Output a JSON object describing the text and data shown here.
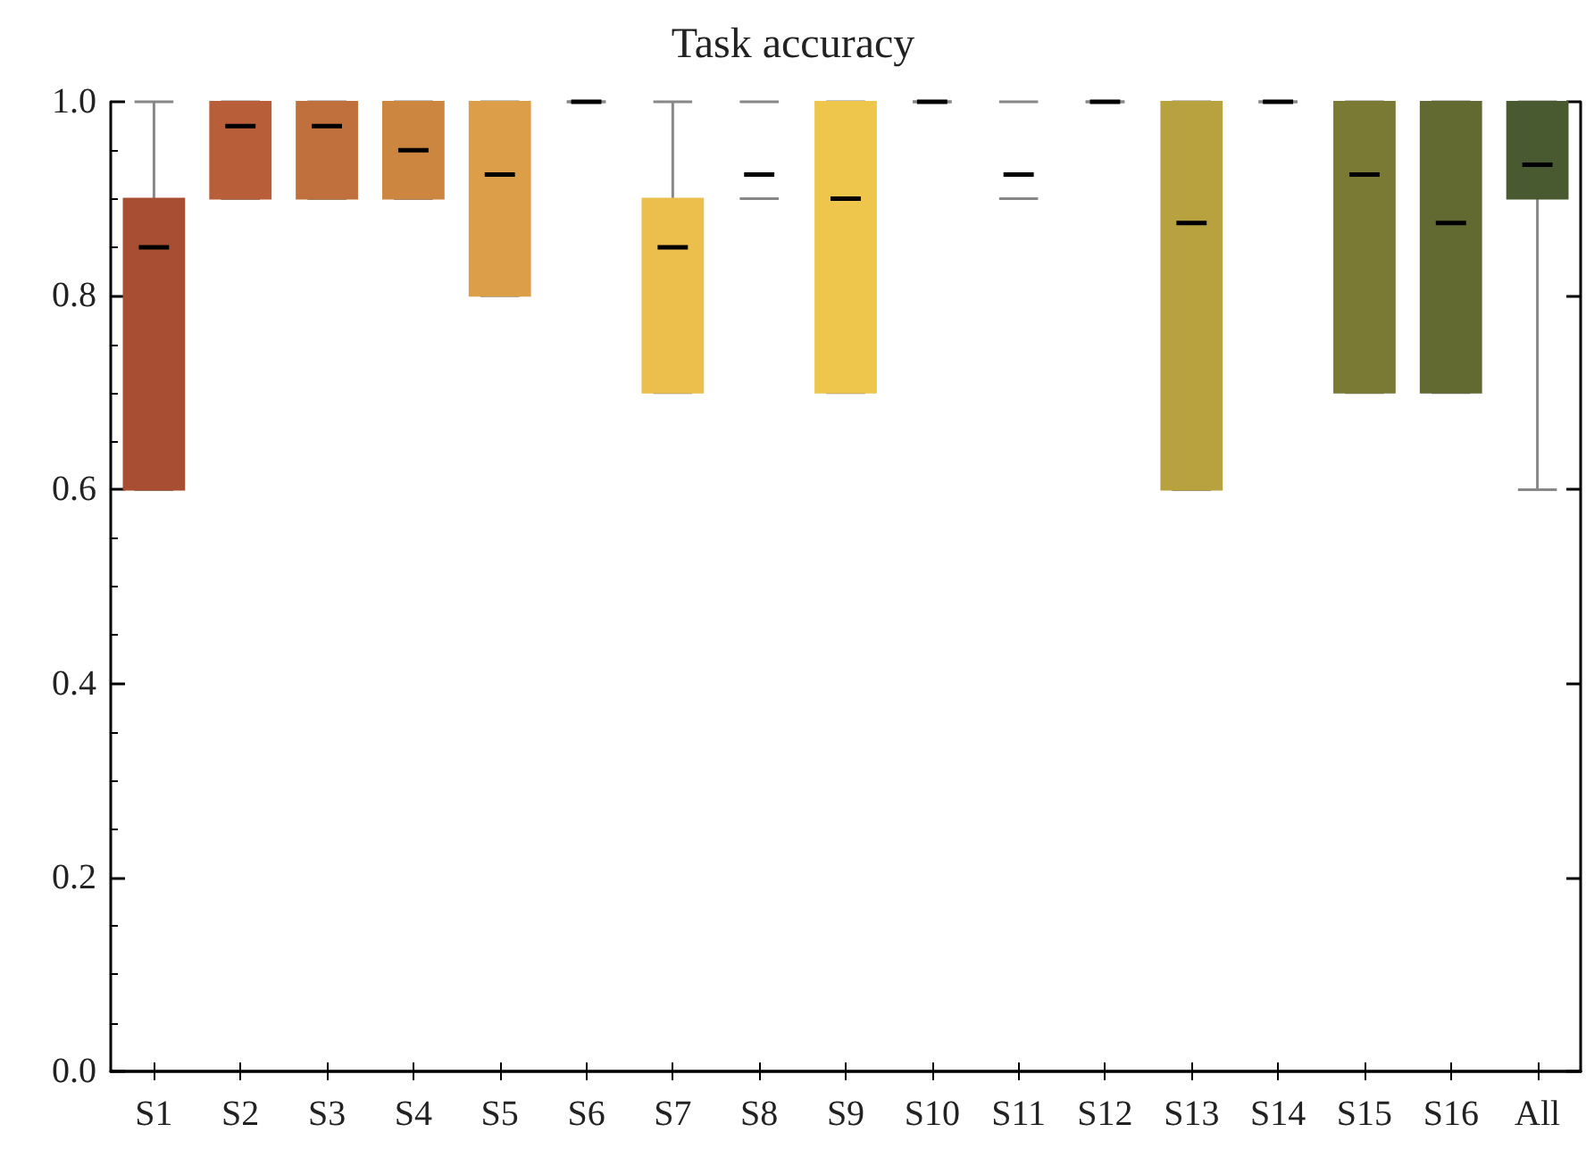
{
  "chart_data": {
    "type": "box",
    "title": "Task accuracy",
    "categories": [
      "S1",
      "S2",
      "S3",
      "S4",
      "S5",
      "S6",
      "S7",
      "S8",
      "S9",
      "S10",
      "S11",
      "S12",
      "S13",
      "S14",
      "S15",
      "S16",
      "All"
    ],
    "boxes": [
      {
        "low": 0.6,
        "q1": 0.6,
        "median": 0.85,
        "q3": 0.9,
        "high": 1.0
      },
      {
        "low": 0.9,
        "q1": 0.9,
        "median": 0.975,
        "q3": 1.0,
        "high": 1.0
      },
      {
        "low": 0.9,
        "q1": 0.9,
        "median": 0.975,
        "q3": 1.0,
        "high": 1.0
      },
      {
        "low": 0.9,
        "q1": 0.9,
        "median": 0.95,
        "q3": 1.0,
        "high": 1.0
      },
      {
        "low": 0.8,
        "q1": 0.8,
        "median": 0.925,
        "q3": 1.0,
        "high": 1.0
      },
      {
        "low": 1.0,
        "q1": 1.0,
        "median": 1.0,
        "q3": 1.0,
        "high": 1.0
      },
      {
        "low": 0.7,
        "q1": 0.7,
        "median": 0.85,
        "q3": 0.9,
        "high": 1.0
      },
      {
        "low": 0.9,
        "q1": 0.9,
        "median": 0.925,
        "q3": 1.0,
        "high": 1.0
      },
      {
        "low": 0.7,
        "q1": 0.7,
        "median": 0.9,
        "q3": 1.0,
        "high": 1.0
      },
      {
        "low": 1.0,
        "q1": 1.0,
        "median": 1.0,
        "q3": 1.0,
        "high": 1.0
      },
      {
        "low": 0.9,
        "q1": 0.9,
        "median": 0.925,
        "q3": 1.0,
        "high": 1.0
      },
      {
        "low": 1.0,
        "q1": 1.0,
        "median": 1.0,
        "q3": 1.0,
        "high": 1.0
      },
      {
        "low": 0.6,
        "q1": 0.6,
        "median": 0.875,
        "q3": 1.0,
        "high": 1.0
      },
      {
        "low": 1.0,
        "q1": 1.0,
        "median": 1.0,
        "q3": 1.0,
        "high": 1.0
      },
      {
        "low": 0.7,
        "q1": 0.7,
        "median": 0.925,
        "q3": 1.0,
        "high": 1.0
      },
      {
        "low": 0.7,
        "q1": 0.7,
        "median": 0.875,
        "q3": 1.0,
        "high": 1.0
      },
      {
        "low": 0.6,
        "q1": 0.9,
        "median": 0.935,
        "q3": 1.0,
        "high": 1.0
      }
    ],
    "colors": [
      "#a84e32",
      "#b85e38",
      "#c0703c",
      "#cc8640",
      "#dc9e48",
      null,
      "#ecbe4c",
      null,
      "#eec64c",
      null,
      null,
      null,
      "#b8a240",
      null,
      "#7a7a34",
      "#626a32",
      "#4a5a30"
    ],
    "ylim": [
      0,
      1.0
    ],
    "yticks": [
      {
        "value": 0,
        "label": "0.0"
      },
      0.2,
      0.4,
      0.6,
      0.8,
      {
        "value": 1.0,
        "label": "1.0"
      }
    ],
    "grid": false
  }
}
